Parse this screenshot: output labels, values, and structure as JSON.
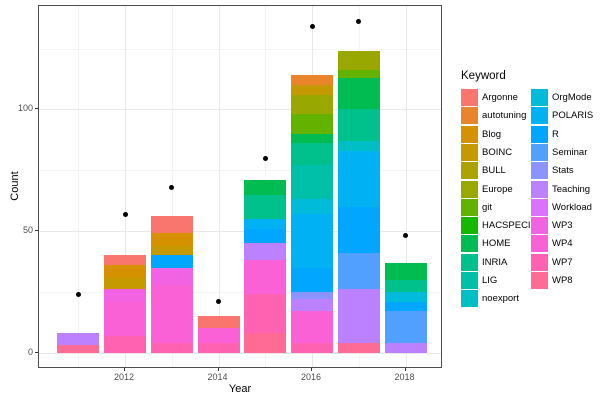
{
  "chart_data": {
    "type": "bar",
    "subtype": "stacked_bar_with_points",
    "title": "",
    "xlabel": "Year",
    "ylabel": "Count",
    "legend_title": "Keyword",
    "legend_position": "right",
    "grid": true,
    "x_tick_labels": [
      "2012",
      "2014",
      "2016",
      "2018"
    ],
    "x_major_ticks": [
      2012,
      2014,
      2016,
      2018
    ],
    "x_minor_years": [
      2011,
      2013,
      2015,
      2017
    ],
    "y_tick_labels": [
      "0",
      "50",
      "100"
    ],
    "y_major_ticks": [
      0,
      50,
      100
    ],
    "y_minor_ticks": [
      25,
      75,
      125
    ],
    "xlim": [
      2010.5,
      2018.7
    ],
    "ylim": [
      0,
      142
    ],
    "keywords": [
      {
        "name": "Argonne",
        "color": "#F8766D"
      },
      {
        "name": "autotuning",
        "color": "#E9842C"
      },
      {
        "name": "Blog",
        "color": "#D69100"
      },
      {
        "name": "BOINC",
        "color": "#C49A00"
      },
      {
        "name": "BULL",
        "color": "#ABA300"
      },
      {
        "name": "Europe",
        "color": "#99A800"
      },
      {
        "name": "git",
        "color": "#63B200"
      },
      {
        "name": "HACSPECIS",
        "color": "#17B700"
      },
      {
        "name": "HOME",
        "color": "#00BC51"
      },
      {
        "name": "INRIA",
        "color": "#00C08B"
      },
      {
        "name": "LIG",
        "color": "#00C0A9"
      },
      {
        "name": "noexport",
        "color": "#00BFC4"
      },
      {
        "name": "OrgMode",
        "color": "#00BBDA"
      },
      {
        "name": "POLARIS",
        "color": "#00B2F3"
      },
      {
        "name": "R",
        "color": "#00A6FF"
      },
      {
        "name": "Seminar",
        "color": "#519FFF"
      },
      {
        "name": "Stats",
        "color": "#8B93FF"
      },
      {
        "name": "Teaching",
        "color": "#BC81FF"
      },
      {
        "name": "Workload",
        "color": "#DB72FB"
      },
      {
        "name": "WP3",
        "color": "#F263E3"
      },
      {
        "name": "WP4",
        "color": "#FB61D7"
      },
      {
        "name": "WP7",
        "color": "#FF62B0"
      },
      {
        "name": "WP8",
        "color": "#FF6B94"
      }
    ],
    "bars": [
      {
        "year": 2011,
        "total": 8,
        "segments": [
          {
            "keyword": "Teaching",
            "value": 5
          },
          {
            "keyword": "WP8",
            "value": 3
          }
        ]
      },
      {
        "year": 2012,
        "total": 40,
        "segments": [
          {
            "keyword": "Argonne",
            "value": 4
          },
          {
            "keyword": "Blog",
            "value": 5
          },
          {
            "keyword": "BOINC",
            "value": 5
          },
          {
            "keyword": "WP3",
            "value": 5
          },
          {
            "keyword": "WP4",
            "value": 14
          },
          {
            "keyword": "WP7",
            "value": 7
          }
        ]
      },
      {
        "year": 2013,
        "total": 56,
        "segments": [
          {
            "keyword": "Argonne",
            "value": 7
          },
          {
            "keyword": "Blog",
            "value": 5
          },
          {
            "keyword": "BOINC",
            "value": 4
          },
          {
            "keyword": "R",
            "value": 5
          },
          {
            "keyword": "WP3",
            "value": 7
          },
          {
            "keyword": "WP4",
            "value": 24
          },
          {
            "keyword": "WP7",
            "value": 4
          }
        ]
      },
      {
        "year": 2014,
        "total": 15,
        "segments": [
          {
            "keyword": "Argonne",
            "value": 5
          },
          {
            "keyword": "WP4",
            "value": 6
          },
          {
            "keyword": "WP7",
            "value": 4
          }
        ]
      },
      {
        "year": 2015,
        "total": 71,
        "segments": [
          {
            "keyword": "HOME",
            "value": 6
          },
          {
            "keyword": "INRIA",
            "value": 10
          },
          {
            "keyword": "POLARIS",
            "value": 4
          },
          {
            "keyword": "R",
            "value": 6
          },
          {
            "keyword": "Teaching",
            "value": 7
          },
          {
            "keyword": "WP4",
            "value": 14
          },
          {
            "keyword": "WP7",
            "value": 16
          },
          {
            "keyword": "WP8",
            "value": 8
          }
        ]
      },
      {
        "year": 2016,
        "total": 114,
        "segments": [
          {
            "keyword": "autotuning",
            "value": 4
          },
          {
            "keyword": "BOINC",
            "value": 4
          },
          {
            "keyword": "Europe",
            "value": 8
          },
          {
            "keyword": "git",
            "value": 8
          },
          {
            "keyword": "HOME",
            "value": 4
          },
          {
            "keyword": "INRIA",
            "value": 9
          },
          {
            "keyword": "LIG",
            "value": 14
          },
          {
            "keyword": "OrgMode",
            "value": 6
          },
          {
            "keyword": "POLARIS",
            "value": 22
          },
          {
            "keyword": "R",
            "value": 10
          },
          {
            "keyword": "Stats",
            "value": 3
          },
          {
            "keyword": "Teaching",
            "value": 5
          },
          {
            "keyword": "WP4",
            "value": 13
          },
          {
            "keyword": "WP7",
            "value": 4
          }
        ]
      },
      {
        "year": 2017,
        "total": 124,
        "segments": [
          {
            "keyword": "Europe",
            "value": 8
          },
          {
            "keyword": "git",
            "value": 3
          },
          {
            "keyword": "HOME",
            "value": 13
          },
          {
            "keyword": "INRIA",
            "value": 13
          },
          {
            "keyword": "noexport",
            "value": 4
          },
          {
            "keyword": "POLARIS",
            "value": 23
          },
          {
            "keyword": "R",
            "value": 19
          },
          {
            "keyword": "Seminar",
            "value": 15
          },
          {
            "keyword": "Teaching",
            "value": 22
          },
          {
            "keyword": "WP8",
            "value": 4
          }
        ]
      },
      {
        "year": 2018,
        "total": 37,
        "segments": [
          {
            "keyword": "HOME",
            "value": 7
          },
          {
            "keyword": "INRIA",
            "value": 5
          },
          {
            "keyword": "OrgMode",
            "value": 4
          },
          {
            "keyword": "R",
            "value": 4
          },
          {
            "keyword": "Seminar",
            "value": 13
          },
          {
            "keyword": "Teaching",
            "value": 4
          }
        ]
      }
    ],
    "points": [
      {
        "year": 2011,
        "value": 24
      },
      {
        "year": 2012,
        "value": 57
      },
      {
        "year": 2013,
        "value": 68
      },
      {
        "year": 2014,
        "value": 21
      },
      {
        "year": 2015,
        "value": 80
      },
      {
        "year": 2016,
        "value": 134
      },
      {
        "year": 2017,
        "value": 136
      },
      {
        "year": 2018,
        "value": 48
      }
    ],
    "colors": {
      "point": "#000000",
      "grid_major": "#E8E8E8",
      "grid_minor": "#F4F4F4",
      "panel_border": "#4D4D4D",
      "tick_label": "#4D4D4D",
      "axis_title": "#000000",
      "background": "#FFFFFF"
    }
  }
}
